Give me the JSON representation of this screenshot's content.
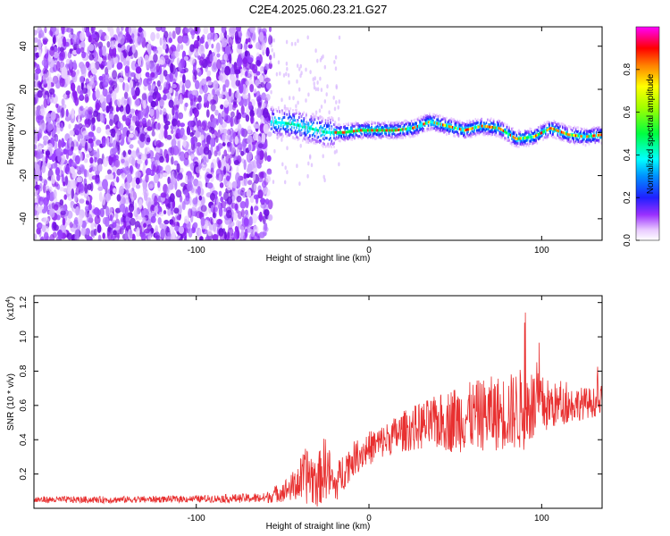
{
  "title": "C2E4.2025.060.23.21.G27",
  "chart_data": [
    {
      "type": "heatmap",
      "xlabel": "Height of straight line (km)",
      "ylabel": "Frequency (Hz)",
      "xlim": [
        -194,
        135
      ],
      "ylim": [
        -50,
        49
      ],
      "x_ticks": [
        -100,
        0,
        100
      ],
      "y_ticks": [
        -40,
        -20,
        0,
        20,
        40
      ],
      "colorbar": {
        "label": "Normalized spectral amplitude",
        "range": [
          0.0,
          1.0
        ],
        "ticks": [
          "0.0",
          "0.2",
          "0.4",
          "0.6",
          "0.8"
        ],
        "colors": [
          "#ffffff",
          "#e0b0ff",
          "#8000ff",
          "#0000ff",
          "#00ffff",
          "#00ff00",
          "#ffff00",
          "#ff8000",
          "#ff0000",
          "#ff00ff"
        ]
      },
      "description_free": true,
      "noise_region_x": [
        -194,
        -57
      ],
      "signal_track": {
        "x": [
          -57,
          -45,
          -35,
          -25,
          -15,
          -5,
          5,
          15,
          25,
          35,
          45,
          55,
          65,
          75,
          85,
          95,
          105,
          115,
          125,
          135
        ],
        "freq": [
          5,
          4,
          2,
          0,
          0,
          1,
          1,
          1,
          2,
          5,
          3,
          1,
          3,
          2,
          -3,
          -2,
          2,
          -1,
          -2,
          -1
        ]
      }
    },
    {
      "type": "line",
      "xlabel": "Height of straight line (km)",
      "ylabel": "SNR (10 * v/v)",
      "y_multiplier": "(x10",
      "y_multiplier_exp": "4",
      "y_multiplier_close": ")",
      "xlim": [
        -194,
        135
      ],
      "ylim": [
        0.0,
        1.24
      ],
      "x_ticks": [
        -100,
        0,
        100
      ],
      "y_ticks": [
        "0.2",
        "0.4",
        "0.6",
        "0.8",
        "1.0",
        "1.2"
      ],
      "color": "#e83030",
      "envelope": {
        "x": [
          -194,
          -150,
          -100,
          -60,
          -45,
          -35,
          -30,
          -25,
          -20,
          -15,
          -10,
          -5,
          0,
          10,
          20,
          30,
          40,
          50,
          60,
          70,
          80,
          90,
          100,
          110,
          120,
          135
        ],
        "mean": [
          0.05,
          0.05,
          0.055,
          0.06,
          0.12,
          0.2,
          0.15,
          0.25,
          0.12,
          0.22,
          0.28,
          0.32,
          0.35,
          0.4,
          0.45,
          0.48,
          0.5,
          0.52,
          0.54,
          0.55,
          0.56,
          0.58,
          0.6,
          0.6,
          0.61,
          0.62
        ],
        "spread": [
          0.02,
          0.02,
          0.02,
          0.03,
          0.08,
          0.18,
          0.15,
          0.2,
          0.1,
          0.12,
          0.1,
          0.1,
          0.1,
          0.1,
          0.12,
          0.14,
          0.16,
          0.2,
          0.2,
          0.22,
          0.22,
          0.25,
          0.18,
          0.12,
          0.1,
          0.08
        ]
      }
    }
  ]
}
